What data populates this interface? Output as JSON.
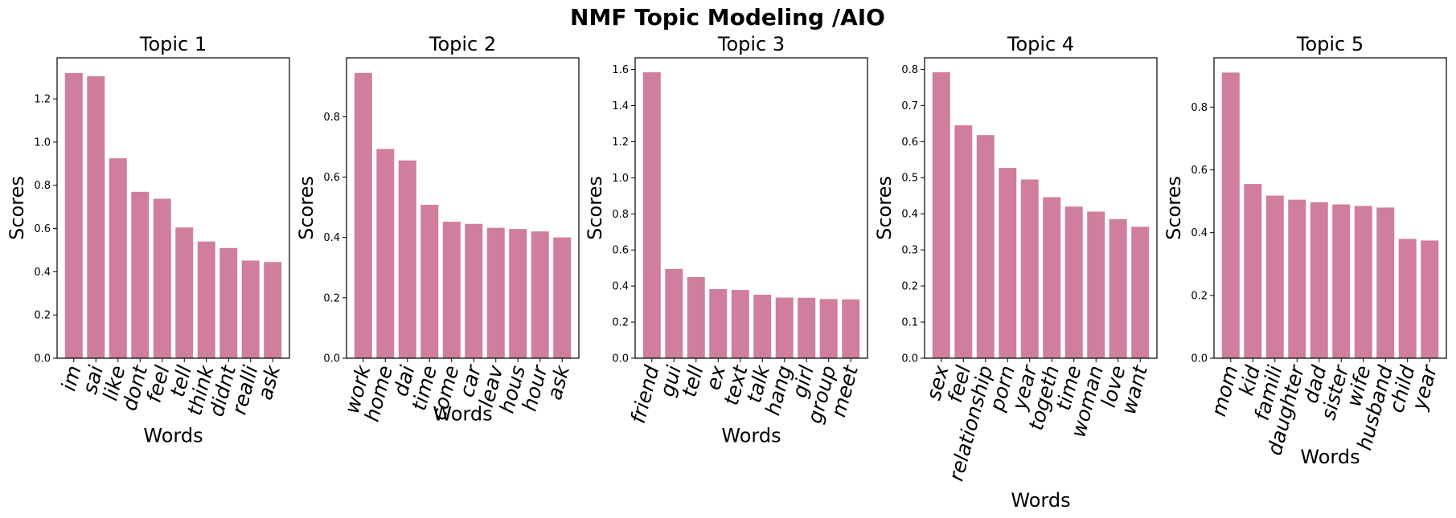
{
  "figure_title": "NMF Topic Modeling /AIO",
  "bar_color": "#cf7e9e",
  "chart_data": [
    {
      "type": "bar",
      "title": "Topic 1",
      "xlabel": "Words",
      "ylabel": "Scores",
      "categories": [
        "im",
        "sai",
        "like",
        "dont",
        "feel",
        "tell",
        "think",
        "didnt",
        "realli",
        "ask"
      ],
      "values": [
        1.32,
        1.305,
        0.925,
        0.77,
        0.738,
        0.605,
        0.54,
        0.51,
        0.452,
        0.445
      ],
      "ylim": [
        0,
        1.39
      ],
      "yticks": [
        "0.0",
        "0.2",
        "0.4",
        "0.6",
        "0.8",
        "1.0",
        "1.2"
      ]
    },
    {
      "type": "bar",
      "title": "Topic 2",
      "xlabel": "Words",
      "ylabel": "Scores",
      "categories": [
        "work",
        "home",
        "dai",
        "time",
        "come",
        "car",
        "leav",
        "hous",
        "hour",
        "ask"
      ],
      "values": [
        0.945,
        0.693,
        0.655,
        0.508,
        0.452,
        0.445,
        0.432,
        0.428,
        0.42,
        0.4
      ],
      "ylim": [
        0,
        0.995
      ],
      "yticks": [
        "0.0",
        "0.2",
        "0.4",
        "0.6",
        "0.8"
      ]
    },
    {
      "type": "bar",
      "title": "Topic 3",
      "xlabel": "Words",
      "ylabel": "Scores",
      "categories": [
        "friend",
        "gui",
        "tell",
        "ex",
        "text",
        "talk",
        "hang",
        "girl",
        "group",
        "meet"
      ],
      "values": [
        1.585,
        0.495,
        0.45,
        0.383,
        0.378,
        0.352,
        0.336,
        0.335,
        0.328,
        0.326
      ],
      "ylim": [
        0,
        1.665
      ],
      "yticks": [
        "0.0",
        "0.2",
        "0.4",
        "0.6",
        "0.8",
        "1.0",
        "1.2",
        "1.4",
        "1.6"
      ]
    },
    {
      "type": "bar",
      "title": "Topic 4",
      "xlabel": "Words",
      "ylabel": "Scores",
      "categories": [
        "sex",
        "feel",
        "relationship",
        "porn",
        "year",
        "togeth",
        "time",
        "woman",
        "love",
        "want"
      ],
      "values": [
        0.792,
        0.645,
        0.618,
        0.527,
        0.495,
        0.446,
        0.42,
        0.406,
        0.385,
        0.364
      ],
      "ylim": [
        0,
        0.832
      ],
      "yticks": [
        "0.0",
        "0.1",
        "0.2",
        "0.3",
        "0.4",
        "0.5",
        "0.6",
        "0.7",
        "0.8"
      ]
    },
    {
      "type": "bar",
      "title": "Topic 5",
      "xlabel": "Words",
      "ylabel": "Scores",
      "categories": [
        "mom",
        "kid",
        "famili",
        "daughter",
        "dad",
        "sister",
        "wife",
        "husband",
        "child",
        "year"
      ],
      "values": [
        0.91,
        0.555,
        0.518,
        0.505,
        0.497,
        0.49,
        0.485,
        0.48,
        0.38,
        0.375
      ],
      "ylim": [
        0,
        0.957
      ],
      "yticks": [
        "0.0",
        "0.2",
        "0.4",
        "0.6",
        "0.8"
      ]
    }
  ]
}
